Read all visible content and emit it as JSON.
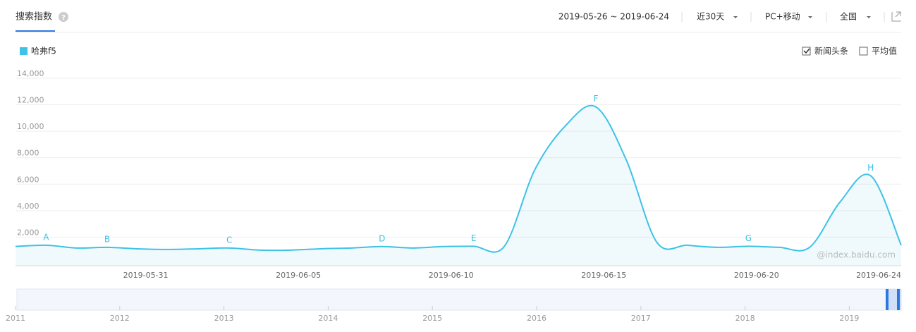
{
  "header": {
    "title": "搜索指数",
    "date_range": "2019-05-26 ~ 2019-06-24",
    "period": "近30天",
    "device": "PC+移动",
    "region": "全国"
  },
  "options": [
    {
      "label": "新闻头条",
      "checked": true
    },
    {
      "label": "平均值",
      "checked": false
    }
  ],
  "watermark": "@index.baidu.com",
  "overview": {
    "years": [
      "2011",
      "2012",
      "2013",
      "2014",
      "2015",
      "2016",
      "2017",
      "2018",
      "2019"
    ]
  },
  "chart_data": {
    "type": "area-line",
    "categories": [
      null,
      null,
      null,
      null,
      null,
      "2019-05-31",
      null,
      null,
      null,
      null,
      "2019-06-05",
      null,
      null,
      null,
      null,
      "2019-06-10",
      null,
      null,
      null,
      null,
      "2019-06-15",
      null,
      null,
      null,
      null,
      "2019-06-20",
      null,
      null,
      null,
      "2019-06-24"
    ],
    "series": [
      {
        "name": "哈弗f5",
        "color": "#3ec2e6",
        "values": [
          1300,
          1390,
          1180,
          1230,
          1120,
          1070,
          1120,
          1180,
          1020,
          1020,
          1120,
          1180,
          1290,
          1180,
          1290,
          1310,
          1290,
          7070,
          10390,
          11840,
          7820,
          1610,
          1390,
          1230,
          1310,
          1230,
          1230,
          4660,
          6640,
          1390
        ]
      }
    ],
    "annotations": [
      {
        "label": "A",
        "index": 1
      },
      {
        "label": "B",
        "index": 3
      },
      {
        "label": "C",
        "index": 7
      },
      {
        "label": "D",
        "index": 12
      },
      {
        "label": "E",
        "index": 15
      },
      {
        "label": "F",
        "index": 19
      },
      {
        "label": "G",
        "index": 24
      },
      {
        "label": "H",
        "index": 28
      }
    ],
    "ylim": [
      0,
      14000
    ],
    "yticks": [
      {
        "value": 2000,
        "label": "2,000"
      },
      {
        "value": 4000,
        "label": "4,000"
      },
      {
        "value": 6000,
        "label": "6,000"
      },
      {
        "value": 8000,
        "label": "8,000"
      },
      {
        "value": 10000,
        "label": "10,000"
      },
      {
        "value": 12000,
        "label": "12,000"
      },
      {
        "value": 14000,
        "label": "14,000"
      }
    ],
    "grid": true
  }
}
